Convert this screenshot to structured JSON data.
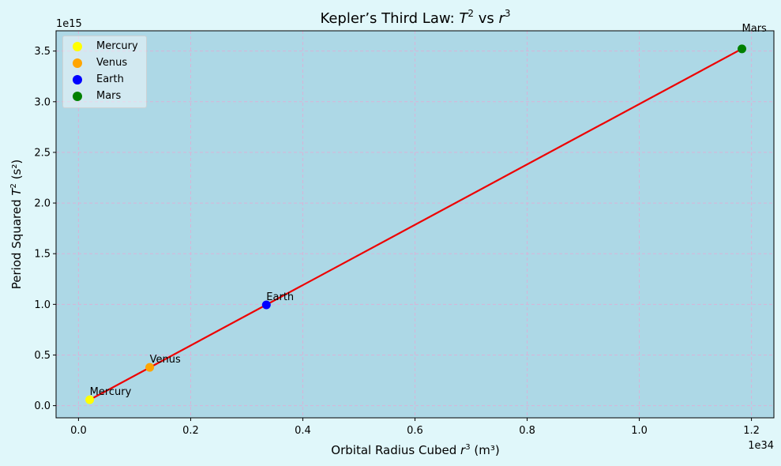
{
  "chart_data": {
    "type": "scatter",
    "title": "Kepler’s Third Law: T² vs r³",
    "title_parts": {
      "prefix": "Kepler’s Third Law: ",
      "a": "T",
      "a_sup": "2",
      "mid": " vs ",
      "b": "r",
      "b_sup": "3"
    },
    "xlabel": "Orbital Radius Cubed r³ (m³)",
    "xlabel_parts": {
      "prefix": "Orbital Radius Cubed ",
      "var": "r",
      "sup": "3",
      "suffix": " (m³)"
    },
    "ylabel": "Period Squared T² (s²)",
    "ylabel_parts": {
      "prefix": "Period Squared ",
      "var": "T",
      "sup": "2",
      "suffix": " (s²)"
    },
    "x_offset_label": "1e34",
    "y_offset_label": "1e15",
    "x_scale": 1e+34,
    "y_scale": 1000000000000000.0,
    "xlim": [
      -0.04,
      1.24
    ],
    "ylim": [
      -0.12,
      3.7
    ],
    "xticks": [
      0.0,
      0.2,
      0.4,
      0.6,
      0.8,
      1.0,
      1.2
    ],
    "xtick_labels": [
      "0.0",
      "0.2",
      "0.4",
      "0.6",
      "0.8",
      "1.0",
      "1.2"
    ],
    "yticks": [
      0.0,
      0.5,
      1.0,
      1.5,
      2.0,
      2.5,
      3.0,
      3.5
    ],
    "ytick_labels": [
      "0.0",
      "0.5",
      "1.0",
      "1.5",
      "2.0",
      "2.5",
      "3.0",
      "3.5"
    ],
    "grid": true,
    "legend_placement": "top-left",
    "background_color": "#add8e6",
    "figure_color": "#e0f7fa",
    "grid_color": "#d8b4d8",
    "fit_line": {
      "color": "#ee0000",
      "x": [
        0.02,
        1.183
      ],
      "y": [
        0.058,
        3.522
      ]
    },
    "series": [
      {
        "name": "Mercury",
        "color": "#ffff00",
        "x": 0.02,
        "y": 0.058
      },
      {
        "name": "Venus",
        "color": "#ffa500",
        "x": 0.127,
        "y": 0.378
      },
      {
        "name": "Earth",
        "color": "#0000ff",
        "x": 0.335,
        "y": 0.995
      },
      {
        "name": "Mars",
        "color": "#008000",
        "x": 1.183,
        "y": 3.522
      }
    ]
  }
}
